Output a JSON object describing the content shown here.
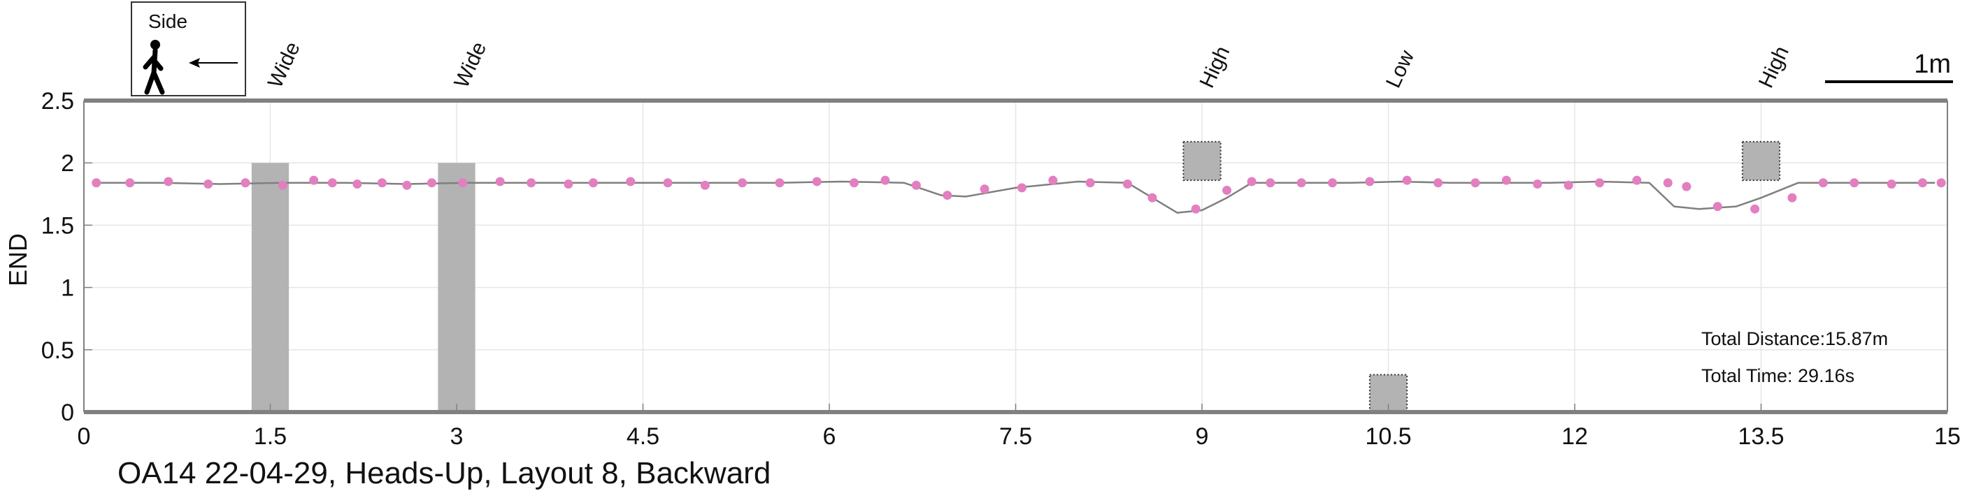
{
  "caption": "OA14 22-04-29, Heads-Up, Layout 8, Backward",
  "legend": {
    "label": "Side",
    "icon": "walking-person-icon",
    "arrow_icon": "left-arrow-icon"
  },
  "scale_bar_label": "1m",
  "stats": {
    "distance": "Total Distance:15.87m",
    "time": "Total Time: 29.16s"
  },
  "colors": {
    "trace": "#7f7f7f",
    "markers": "#e27fc0",
    "obstacle": "#b3b3b3",
    "axis": "#808080",
    "grid": "#e6e6e6"
  },
  "chart_data": {
    "type": "line",
    "ylabel": "END",
    "xlabel": "",
    "xlim": [
      0,
      15
    ],
    "ylim": [
      0,
      2.5
    ],
    "xticks": [
      "0",
      "1.5",
      "3",
      "4.5",
      "6",
      "7.5",
      "9",
      "10.5",
      "12",
      "13.5",
      "15"
    ],
    "yticks": [
      "0",
      "0.5",
      "1",
      "1.5",
      "2",
      "2.5"
    ],
    "grid": true,
    "series": [
      {
        "x": [
          0.1,
          0.6,
          1.1,
          1.6,
          2.1,
          2.6,
          3.1,
          3.6,
          4.1,
          4.6,
          5.1,
          5.6,
          6.1,
          6.6,
          6.9,
          7.1,
          7.5,
          8.0,
          8.4,
          8.6,
          8.8,
          9.0,
          9.2,
          9.4,
          9.8,
          10.2,
          10.6,
          11.0,
          11.4,
          11.8,
          12.2,
          12.6,
          12.8,
          13.0,
          13.3,
          13.5,
          13.8,
          14.2,
          14.6,
          14.9
        ],
        "y": [
          1.84,
          1.84,
          1.83,
          1.84,
          1.84,
          1.83,
          1.84,
          1.84,
          1.84,
          1.84,
          1.84,
          1.84,
          1.85,
          1.84,
          1.74,
          1.73,
          1.8,
          1.85,
          1.84,
          1.72,
          1.6,
          1.62,
          1.72,
          1.84,
          1.84,
          1.84,
          1.85,
          1.84,
          1.84,
          1.84,
          1.85,
          1.84,
          1.65,
          1.63,
          1.65,
          1.72,
          1.84,
          1.84,
          1.84,
          1.84
        ]
      }
    ],
    "markers": {
      "x": [
        0.1,
        0.37,
        0.68,
        1.0,
        1.3,
        1.6,
        1.85,
        2.0,
        2.2,
        2.4,
        2.6,
        2.8,
        3.05,
        3.35,
        3.6,
        3.9,
        4.1,
        4.4,
        4.7,
        5.0,
        5.3,
        5.6,
        5.9,
        6.2,
        6.45,
        6.7,
        6.95,
        7.25,
        7.55,
        7.8,
        8.1,
        8.4,
        8.6,
        8.95,
        9.2,
        9.4,
        9.55,
        9.8,
        10.05,
        10.35,
        10.65,
        10.9,
        11.2,
        11.45,
        11.7,
        11.95,
        12.2,
        12.5,
        12.75,
        12.9,
        13.15,
        13.45,
        13.75,
        14.0,
        14.25,
        14.55,
        14.8,
        14.95
      ],
      "y": [
        1.84,
        1.84,
        1.85,
        1.83,
        1.84,
        1.82,
        1.86,
        1.84,
        1.83,
        1.84,
        1.82,
        1.84,
        1.84,
        1.85,
        1.84,
        1.83,
        1.84,
        1.85,
        1.84,
        1.82,
        1.84,
        1.84,
        1.85,
        1.84,
        1.86,
        1.82,
        1.74,
        1.79,
        1.8,
        1.86,
        1.84,
        1.83,
        1.72,
        1.63,
        1.78,
        1.85,
        1.84,
        1.84,
        1.84,
        1.85,
        1.86,
        1.84,
        1.84,
        1.86,
        1.83,
        1.82,
        1.84,
        1.86,
        1.84,
        1.81,
        1.65,
        1.63,
        1.72,
        1.84,
        1.84,
        1.83,
        1.84,
        1.84
      ]
    },
    "obstacles": [
      {
        "label": "Wide",
        "x": 1.5,
        "width": 0.3,
        "ymin": 0,
        "ymax": 2.0,
        "style": "solid"
      },
      {
        "label": "Wide",
        "x": 3.0,
        "width": 0.3,
        "ymin": 0,
        "ymax": 2.0,
        "style": "solid"
      },
      {
        "label": "High",
        "x": 9.0,
        "width": 0.3,
        "ymin": 1.86,
        "ymax": 2.17,
        "style": "dotted"
      },
      {
        "label": "Low",
        "x": 10.5,
        "width": 0.3,
        "ymin": 0,
        "ymax": 0.3,
        "style": "dotted"
      },
      {
        "label": "High",
        "x": 13.5,
        "width": 0.3,
        "ymin": 1.86,
        "ymax": 2.17,
        "style": "dotted"
      }
    ]
  }
}
